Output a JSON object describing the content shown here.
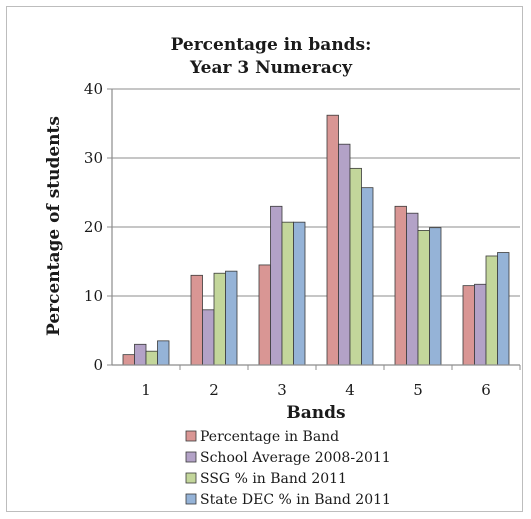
{
  "chart_data": {
    "type": "bar",
    "title": [
      "Percentage in bands:",
      "Year 3 Numeracy"
    ],
    "xlabel": "Bands",
    "ylabel": "Percentage of students",
    "categories": [
      "1",
      "2",
      "3",
      "4",
      "5",
      "6"
    ],
    "ylim": [
      0,
      40
    ],
    "yticks": [
      0,
      10,
      20,
      30,
      40
    ],
    "grid": true,
    "legend_position": "bottom",
    "series": [
      {
        "name": "Percentage in Band",
        "color": "#d99694",
        "values": [
          1.5,
          13,
          14.5,
          36.2,
          23,
          11.5
        ]
      },
      {
        "name": "School Average 2008-2011",
        "color": "#b3a2c7",
        "values": [
          3,
          8,
          23,
          32,
          22,
          11.7
        ]
      },
      {
        "name": "SSG % in Band 2011",
        "color": "#c3d69b",
        "values": [
          2,
          13.3,
          20.7,
          28.5,
          19.5,
          15.8
        ]
      },
      {
        "name": "State DEC % in Band 2011",
        "color": "#95b3d7",
        "values": [
          3.5,
          13.6,
          20.7,
          25.7,
          19.9,
          16.3
        ]
      }
    ]
  }
}
